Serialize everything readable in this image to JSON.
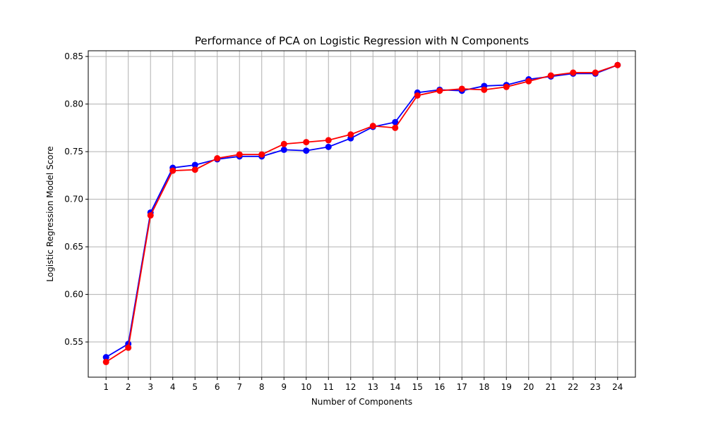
{
  "chart_data": {
    "type": "line",
    "title": "Performance of PCA on Logistic Regression with N Components",
    "xlabel": "Number of Components",
    "ylabel": "Logistic Regression Model Score",
    "x": [
      1,
      2,
      3,
      4,
      5,
      6,
      7,
      8,
      9,
      10,
      11,
      12,
      13,
      14,
      15,
      16,
      17,
      18,
      19,
      20,
      21,
      22,
      23,
      24
    ],
    "xlim": [
      0.2,
      24.8
    ],
    "ylim": [
      0.513,
      0.856
    ],
    "yticks": [
      0.55,
      0.6,
      0.65,
      0.7,
      0.75,
      0.8,
      0.85
    ],
    "ytick_labels": [
      "0.55",
      "0.60",
      "0.65",
      "0.70",
      "0.75",
      "0.80",
      "0.85"
    ],
    "grid": true,
    "series": [
      {
        "color": "#0000ff",
        "values": [
          0.534,
          0.548,
          0.686,
          0.733,
          0.736,
          0.742,
          0.745,
          0.745,
          0.752,
          0.751,
          0.755,
          0.764,
          0.776,
          0.781,
          0.812,
          0.815,
          0.814,
          0.819,
          0.82,
          0.826,
          0.829,
          0.832,
          0.832,
          0.841
        ]
      },
      {
        "color": "#ff0000",
        "values": [
          0.529,
          0.544,
          0.683,
          0.73,
          0.731,
          0.743,
          0.747,
          0.747,
          0.758,
          0.76,
          0.762,
          0.768,
          0.777,
          0.775,
          0.809,
          0.814,
          0.816,
          0.815,
          0.818,
          0.824,
          0.83,
          0.833,
          0.833,
          0.841
        ]
      }
    ]
  }
}
